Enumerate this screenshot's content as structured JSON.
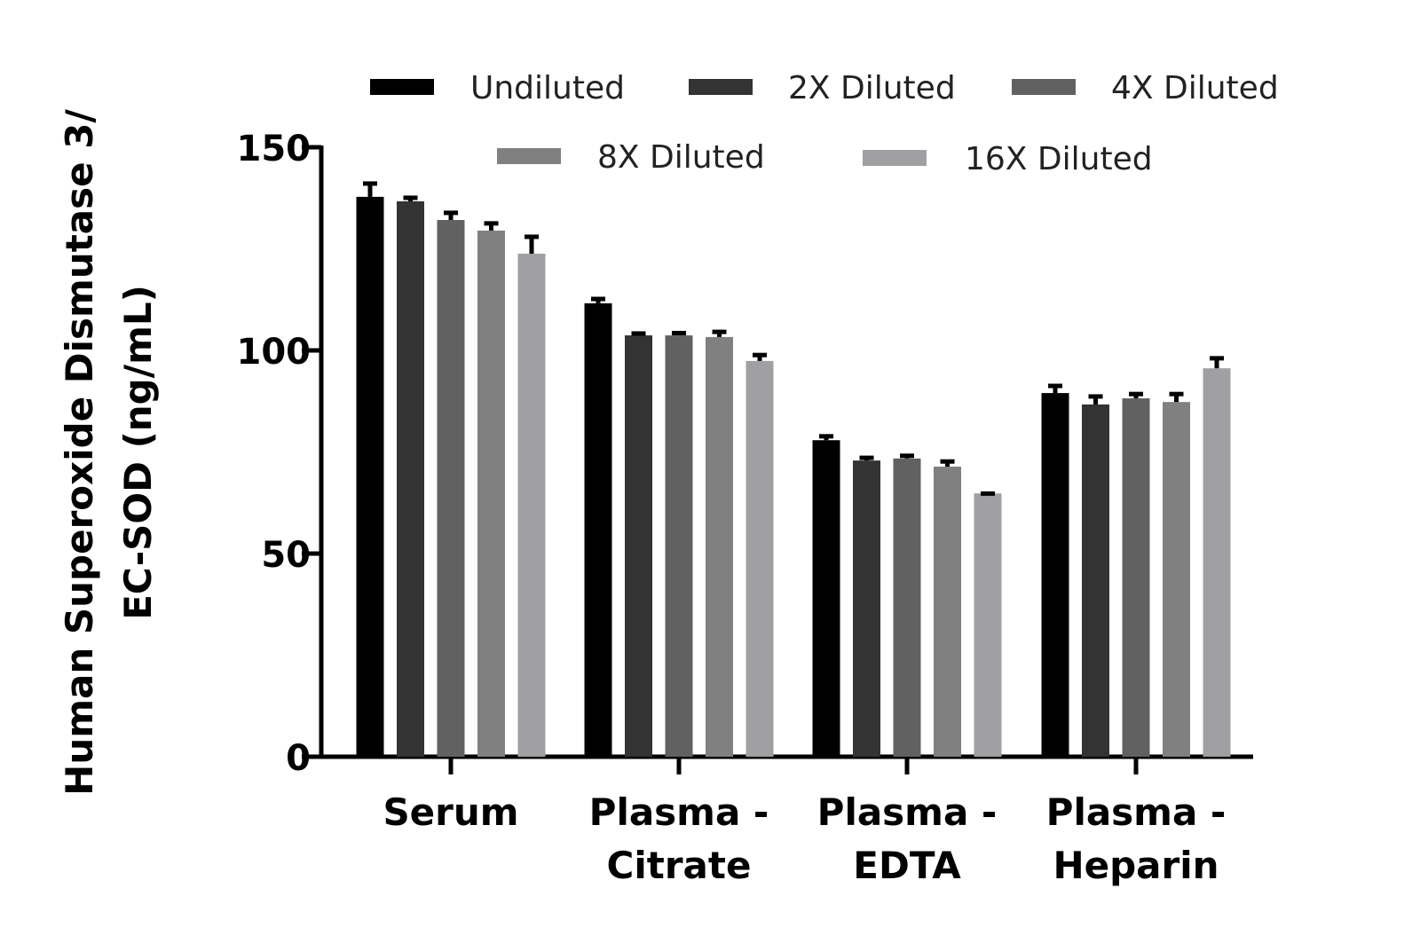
{
  "chart_data": {
    "type": "bar",
    "title": "",
    "xlabel": "",
    "ylabel": [
      "Human Superoxide Dismutase 3/",
      "EC-SOD (ng/mL)"
    ],
    "ylim": [
      0,
      150
    ],
    "yticks": [
      "0",
      "50",
      "100",
      "150"
    ],
    "grid": false,
    "legend_placement": "top",
    "categories": [
      [
        "Serum"
      ],
      [
        "Plasma -",
        "Citrate"
      ],
      [
        "Plasma -",
        "EDTA"
      ],
      [
        "Plasma -",
        "Heparin"
      ]
    ],
    "series": [
      {
        "name": "Undiluted",
        "color": "#000000",
        "values": [
          137.8,
          111.6,
          77.9,
          89.5
        ],
        "errors": [
          3.7,
          1.5,
          1.4,
          2.2
        ]
      },
      {
        "name": "2X Diluted",
        "color": "#333333",
        "values": [
          136.7,
          103.7,
          72.9,
          86.7
        ],
        "errors": [
          1.3,
          0.9,
          1.1,
          2.4
        ]
      },
      {
        "name": "4X Diluted",
        "color": "#616161",
        "values": [
          132.1,
          103.7,
          73.4,
          88.2
        ],
        "errors": [
          2.2,
          1.0,
          1.1,
          1.5
        ]
      },
      {
        "name": "8X Diluted",
        "color": "#808080",
        "values": [
          129.5,
          103.3,
          71.4,
          87.3
        ],
        "errors": [
          2.2,
          1.7,
          1.7,
          2.4
        ]
      },
      {
        "name": "16X Diluted",
        "color": "#a0a0a3",
        "values": [
          123.8,
          97.4,
          64.8,
          95.6
        ],
        "errors": [
          4.6,
          1.9,
          0.4,
          2.9
        ]
      }
    ]
  }
}
